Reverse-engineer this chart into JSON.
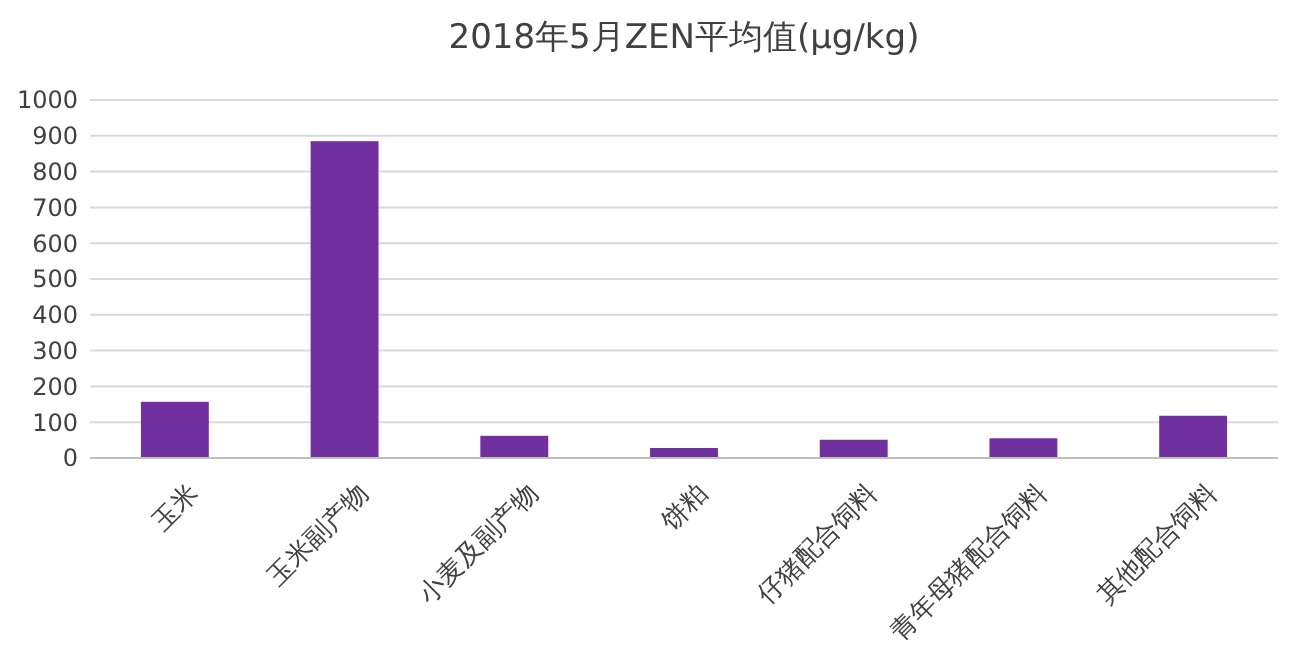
{
  "chart_data": {
    "type": "bar",
    "title": "2018年5月ZEN平均值(μg/kg)",
    "categories": [
      "玉米",
      "玉米副产物",
      "小麦及副产物",
      "饼粕",
      "仔猪配合饲料",
      "青年母猪配合饲料",
      "其他配合饲料"
    ],
    "values": [
      157,
      885,
      62,
      28,
      51,
      55,
      118
    ],
    "color": "#7030a0",
    "ylim": [
      0,
      1000
    ],
    "yticks": [
      0,
      100,
      200,
      300,
      400,
      500,
      600,
      700,
      800,
      900,
      1000
    ],
    "grid": "y"
  }
}
